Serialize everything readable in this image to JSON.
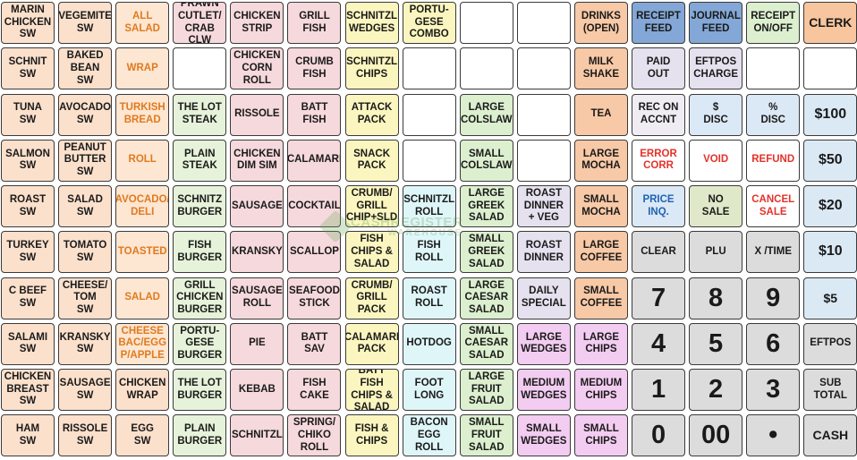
{
  "colors": {
    "sandwich": "#fbe0cc",
    "salad_side": "#fde6d2",
    "salad_side_text": "#e07a1e",
    "steak_burger": "#e6f2d9",
    "chicken": "#f6d9dc",
    "seafood": "#f6d9dc",
    "combo_pack": "#fbf6bf",
    "roll_cyan": "#dff6f9",
    "salad_green": "#dcefcf",
    "special_lavender": "#e6e1ef",
    "wedges_pink": "#f3ccf1",
    "drinks": "#f8c9a6",
    "function_blue": "#83a7d6",
    "function_grey": "#dcdcdc",
    "function_light": "#f0ecf4",
    "paid_lavender": "#e5e1ee",
    "disc_blue": "#dbe8f5",
    "no_sale_green": "#dfe9c9",
    "red_text": "#e4322b",
    "blue_text": "#1f63b3",
    "clerk": "#f7c59e",
    "cash_keys": "#dbe9f5",
    "number_keys": "#dcdcdc"
  },
  "watermark": {
    "top": "CASHREGISTER",
    "bottom": "WAREHOUSE"
  },
  "keys": [
    [
      {
        "name": "key-marin-chicken-sw",
        "label": "MARIN\nCHICKEN\nSW",
        "color": "sandwich"
      },
      {
        "name": "key-vegemite-sw",
        "label": "VEGEMITE\nSW",
        "color": "sandwich"
      },
      {
        "name": "key-all-salad",
        "label": "ALL\nSALAD",
        "color": "salad_side",
        "text": "salad_side_text"
      },
      {
        "name": "key-prawn-cutlet-crab-clw",
        "label": "PRAWN\nCUTLET/\nCRAB CLW",
        "color": "chicken"
      },
      {
        "name": "key-chicken-strip",
        "label": "CHICKEN\nSTRIP",
        "color": "chicken"
      },
      {
        "name": "key-grill-fish",
        "label": "GRILL\nFISH",
        "color": "seafood"
      },
      {
        "name": "key-schnitzl-wedges",
        "label": "SCHNITZL\nWEDGES",
        "color": "combo_pack"
      },
      {
        "name": "key-portugese-combo",
        "label": "PORTU-\nGESE\nCOMBO",
        "color": "combo_pack"
      },
      {
        "name": "key-blank-r1c9",
        "label": "",
        "color": "blank"
      },
      {
        "name": "key-blank-r1c10",
        "label": "",
        "color": "blank"
      },
      {
        "name": "key-drinks-open",
        "label": "DRINKS\n(OPEN)",
        "color": "drinks"
      },
      {
        "name": "key-receipt-feed",
        "label": "RECEIPT\nFEED",
        "color": "function_blue"
      },
      {
        "name": "key-journal-feed",
        "label": "JOURNAL\nFEED",
        "color": "function_blue"
      },
      {
        "name": "key-receipt-on-off",
        "label": "RECEIPT\nON/OFF",
        "color": "salad_green"
      },
      {
        "name": "key-clerk",
        "label": "CLERK",
        "color": "clerk",
        "size": "mid"
      }
    ],
    [
      {
        "name": "key-schnit-sw",
        "label": "SCHNIT\nSW",
        "color": "sandwich"
      },
      {
        "name": "key-baked-bean-sw",
        "label": "BAKED\nBEAN\nSW",
        "color": "sandwich"
      },
      {
        "name": "key-wrap",
        "label": "WRAP",
        "color": "salad_side",
        "text": "salad_side_text"
      },
      {
        "name": "key-blank-r2c4",
        "label": "",
        "color": "blank"
      },
      {
        "name": "key-chicken-corn-roll",
        "label": "CHICKEN\nCORN\nROLL",
        "color": "chicken"
      },
      {
        "name": "key-crumb-fish",
        "label": "CRUMB\nFISH",
        "color": "seafood"
      },
      {
        "name": "key-schnitzl-chips",
        "label": "SCHNITZL\nCHIPS",
        "color": "combo_pack"
      },
      {
        "name": "key-blank-r2c8",
        "label": "",
        "color": "blank"
      },
      {
        "name": "key-blank-r2c9",
        "label": "",
        "color": "blank"
      },
      {
        "name": "key-blank-r2c10",
        "label": "",
        "color": "blank"
      },
      {
        "name": "key-milk-shake",
        "label": "MILK\nSHAKE",
        "color": "drinks"
      },
      {
        "name": "key-paid-out",
        "label": "PAID\nOUT",
        "color": "paid_lavender"
      },
      {
        "name": "key-eftpos-charge",
        "label": "EFTPOS\nCHARGE",
        "color": "paid_lavender"
      },
      {
        "name": "key-blank-r2c14",
        "label": "",
        "color": "blank"
      },
      {
        "name": "key-blank-r2c15",
        "label": "",
        "color": "blank"
      }
    ],
    [
      {
        "name": "key-tuna-sw",
        "label": "TUNA\nSW",
        "color": "sandwich"
      },
      {
        "name": "key-avocado-sw",
        "label": "AVOCADO\nSW",
        "color": "sandwich"
      },
      {
        "name": "key-turkish-bread",
        "label": "TURKISH\nBREAD",
        "color": "salad_side",
        "text": "salad_side_text"
      },
      {
        "name": "key-the-lot-steak",
        "label": "THE LOT\nSTEAK",
        "color": "steak_burger"
      },
      {
        "name": "key-rissole",
        "label": "RISSOLE",
        "color": "chicken"
      },
      {
        "name": "key-batt-fish",
        "label": "BATT\nFISH",
        "color": "seafood"
      },
      {
        "name": "key-attack-pack",
        "label": "ATTACK\nPACK",
        "color": "combo_pack"
      },
      {
        "name": "key-blank-r3c8",
        "label": "",
        "color": "blank"
      },
      {
        "name": "key-large-colslaw",
        "label": "LARGE\nCOLSLAW",
        "color": "salad_green"
      },
      {
        "name": "key-blank-r3c10",
        "label": "",
        "color": "blank"
      },
      {
        "name": "key-tea",
        "label": "TEA",
        "color": "drinks"
      },
      {
        "name": "key-rec-on-accnt",
        "label": "REC ON\nACCNT",
        "color": "function_light"
      },
      {
        "name": "key-dollar-disc",
        "label": "$\nDISC",
        "color": "disc_blue"
      },
      {
        "name": "key-percent-disc",
        "label": "%\nDISC",
        "color": "disc_blue"
      },
      {
        "name": "key-100-dollars",
        "label": "$100",
        "color": "cash_keys",
        "size": "big"
      }
    ],
    [
      {
        "name": "key-salmon-sw",
        "label": "SALMON\nSW",
        "color": "sandwich"
      },
      {
        "name": "key-peanut-butter-sw",
        "label": "PEANUT\nBUTTER\nSW",
        "color": "sandwich"
      },
      {
        "name": "key-roll",
        "label": "ROLL",
        "color": "salad_side",
        "text": "salad_side_text"
      },
      {
        "name": "key-plain-steak",
        "label": "PLAIN\nSTEAK",
        "color": "steak_burger"
      },
      {
        "name": "key-chicken-dim-sim",
        "label": "CHICKEN\nDIM SIM",
        "color": "chicken"
      },
      {
        "name": "key-calamari",
        "label": "CALAMARI",
        "color": "seafood"
      },
      {
        "name": "key-snack-pack",
        "label": "SNACK\nPACK",
        "color": "combo_pack"
      },
      {
        "name": "key-blank-r4c8",
        "label": "",
        "color": "blank"
      },
      {
        "name": "key-small-colslaw",
        "label": "SMALL\nCOLSLAW",
        "color": "salad_green"
      },
      {
        "name": "key-blank-r4c10",
        "label": "",
        "color": "blank"
      },
      {
        "name": "key-large-mocha",
        "label": "LARGE\nMOCHA",
        "color": "drinks"
      },
      {
        "name": "key-error-corr",
        "label": "ERROR\nCORR",
        "color": "blank",
        "text": "red_text"
      },
      {
        "name": "key-void",
        "label": "VOID",
        "color": "blank",
        "text": "red_text"
      },
      {
        "name": "key-refund",
        "label": "REFUND",
        "color": "blank",
        "text": "red_text"
      },
      {
        "name": "key-50-dollars",
        "label": "$50",
        "color": "cash_keys",
        "size": "big"
      }
    ],
    [
      {
        "name": "key-roast-sw",
        "label": "ROAST\nSW",
        "color": "sandwich"
      },
      {
        "name": "key-salad-sw",
        "label": "SALAD\nSW",
        "color": "sandwich"
      },
      {
        "name": "key-avocado-deli",
        "label": "AVOCADO/\nDELI",
        "color": "salad_side",
        "text": "salad_side_text"
      },
      {
        "name": "key-schnitz-burger",
        "label": "SCHNITZ\nBURGER",
        "color": "steak_burger"
      },
      {
        "name": "key-sausage",
        "label": "SAUSAGE",
        "color": "chicken"
      },
      {
        "name": "key-cocktail",
        "label": "COCKTAIL",
        "color": "seafood"
      },
      {
        "name": "key-crumb-grill-chip-sld",
        "label": "CRUMB/\nGRILL\nCHIP+SLD",
        "color": "combo_pack"
      },
      {
        "name": "key-schnitzl-roll",
        "label": "SCHNITZL\nROLL",
        "color": "roll_cyan"
      },
      {
        "name": "key-large-greek-salad",
        "label": "LARGE\nGREEK\nSALAD",
        "color": "salad_green"
      },
      {
        "name": "key-roast-dinner-veg",
        "label": "ROAST\nDINNER\n+ VEG",
        "color": "special_lavender"
      },
      {
        "name": "key-small-mocha",
        "label": "SMALL\nMOCHA",
        "color": "drinks"
      },
      {
        "name": "key-price-inq",
        "label": "PRICE\nINQ.",
        "color": "disc_blue",
        "text": "blue_text"
      },
      {
        "name": "key-no-sale",
        "label": "NO\nSALE",
        "color": "no_sale_green"
      },
      {
        "name": "key-cancel-sale",
        "label": "CANCEL\nSALE",
        "color": "blank",
        "text": "red_text"
      },
      {
        "name": "key-20-dollars",
        "label": "$20",
        "color": "cash_keys",
        "size": "big"
      }
    ],
    [
      {
        "name": "key-turkey-sw",
        "label": "TURKEY\nSW",
        "color": "sandwich"
      },
      {
        "name": "key-tomato-sw",
        "label": "TOMATO\nSW",
        "color": "sandwich"
      },
      {
        "name": "key-toasted",
        "label": "TOASTED",
        "color": "salad_side",
        "text": "salad_side_text"
      },
      {
        "name": "key-fish-burger",
        "label": "FISH\nBURGER",
        "color": "steak_burger"
      },
      {
        "name": "key-kransky",
        "label": "KRANSKY",
        "color": "chicken"
      },
      {
        "name": "key-scallop",
        "label": "SCALLOP",
        "color": "seafood"
      },
      {
        "name": "key-fish-chips-salad",
        "label": "FISH\nCHIPS &\nSALAD",
        "color": "combo_pack"
      },
      {
        "name": "key-fish-roll",
        "label": "FISH\nROLL",
        "color": "roll_cyan"
      },
      {
        "name": "key-small-greek-salad",
        "label": "SMALL\nGREEK\nSALAD",
        "color": "salad_green"
      },
      {
        "name": "key-roast-dinner",
        "label": "ROAST\nDINNER",
        "color": "special_lavender"
      },
      {
        "name": "key-large-coffee",
        "label": "LARGE\nCOFFEE",
        "color": "drinks"
      },
      {
        "name": "key-clear",
        "label": "CLEAR",
        "color": "function_grey"
      },
      {
        "name": "key-plu",
        "label": "PLU",
        "color": "function_grey"
      },
      {
        "name": "key-x-time",
        "label": "X /TIME",
        "color": "function_grey"
      },
      {
        "name": "key-10-dollars",
        "label": "$10",
        "color": "cash_keys",
        "size": "big"
      }
    ],
    [
      {
        "name": "key-c-beef-sw",
        "label": "C BEEF\nSW",
        "color": "sandwich"
      },
      {
        "name": "key-cheese-tom-sw",
        "label": "CHEESE/\nTOM\nSW",
        "color": "sandwich"
      },
      {
        "name": "key-salad",
        "label": "SALAD",
        "color": "salad_side",
        "text": "salad_side_text"
      },
      {
        "name": "key-grill-chicken-burger",
        "label": "GRILL\nCHICKEN\nBURGER",
        "color": "steak_burger"
      },
      {
        "name": "key-sausage-roll",
        "label": "SAUSAGE\nROLL",
        "color": "chicken"
      },
      {
        "name": "key-seafood-stick",
        "label": "SEAFOOD\nSTICK",
        "color": "seafood"
      },
      {
        "name": "key-crumb-grill-pack",
        "label": "CRUMB/\nGRILL\nPACK",
        "color": "combo_pack"
      },
      {
        "name": "key-roast-roll",
        "label": "ROAST\nROLL",
        "color": "roll_cyan"
      },
      {
        "name": "key-large-caesar-salad",
        "label": "LARGE\nCAESAR\nSALAD",
        "color": "salad_green"
      },
      {
        "name": "key-daily-special",
        "label": "DAILY\nSPECIAL",
        "color": "special_lavender"
      },
      {
        "name": "key-small-coffee",
        "label": "SMALL\nCOFFEE",
        "color": "drinks"
      },
      {
        "name": "key-7",
        "label": "7",
        "color": "number_keys",
        "size": "num"
      },
      {
        "name": "key-8",
        "label": "8",
        "color": "number_keys",
        "size": "num"
      },
      {
        "name": "key-9",
        "label": "9",
        "color": "number_keys",
        "size": "num"
      },
      {
        "name": "key-5-dollars",
        "label": "$5",
        "color": "cash_keys",
        "size": "mid"
      }
    ],
    [
      {
        "name": "key-salami-sw",
        "label": "SALAMI\nSW",
        "color": "sandwich"
      },
      {
        "name": "key-kransky-sw",
        "label": "KRANSKY\nSW",
        "color": "sandwich"
      },
      {
        "name": "key-cheese-bac-egg-papple",
        "label": "CHEESE\nBAC/EGG\nP/APPLE",
        "color": "salad_side",
        "text": "salad_side_text"
      },
      {
        "name": "key-portugese-burger",
        "label": "PORTU-\nGESE\nBURGER",
        "color": "steak_burger"
      },
      {
        "name": "key-pie",
        "label": "PIE",
        "color": "chicken"
      },
      {
        "name": "key-batt-sav",
        "label": "BATT\nSAV",
        "color": "seafood"
      },
      {
        "name": "key-calamari-pack",
        "label": "CALAMARI\nPACK",
        "color": "combo_pack"
      },
      {
        "name": "key-hotdog",
        "label": "HOTDOG",
        "color": "roll_cyan"
      },
      {
        "name": "key-small-caesar-salad",
        "label": "SMALL\nCAESAR\nSALAD",
        "color": "salad_green"
      },
      {
        "name": "key-large-wedges",
        "label": "LARGE\nWEDGES",
        "color": "wedges_pink"
      },
      {
        "name": "key-large-chips",
        "label": "LARGE\nCHIPS",
        "color": "wedges_pink"
      },
      {
        "name": "key-4",
        "label": "4",
        "color": "number_keys",
        "size": "num"
      },
      {
        "name": "key-5",
        "label": "5",
        "color": "number_keys",
        "size": "num"
      },
      {
        "name": "key-6",
        "label": "6",
        "color": "number_keys",
        "size": "num"
      },
      {
        "name": "key-eftpos",
        "label": "EFTPOS",
        "color": "function_grey"
      }
    ],
    [
      {
        "name": "key-chicken-breast-sw",
        "label": "CHICKEN\nBREAST\nSW",
        "color": "sandwich"
      },
      {
        "name": "key-sausage-sw",
        "label": "SAUSAGE\nSW",
        "color": "sandwich"
      },
      {
        "name": "key-chicken-wrap",
        "label": "CHICKEN\nWRAP",
        "color": "sandwich"
      },
      {
        "name": "key-the-lot-burger",
        "label": "THE LOT\nBURGER",
        "color": "steak_burger"
      },
      {
        "name": "key-kebab",
        "label": "KEBAB",
        "color": "chicken"
      },
      {
        "name": "key-fish-cake",
        "label": "FISH\nCAKE",
        "color": "seafood"
      },
      {
        "name": "key-batt-fish-chips-salad",
        "label": "BATT FISH\nCHIPS &\nSALAD",
        "color": "combo_pack"
      },
      {
        "name": "key-foot-long",
        "label": "FOOT\nLONG",
        "color": "roll_cyan"
      },
      {
        "name": "key-large-fruit-salad",
        "label": "LARGE\nFRUIT\nSALAD",
        "color": "salad_green"
      },
      {
        "name": "key-medium-wedges",
        "label": "MEDIUM\nWEDGES",
        "color": "wedges_pink"
      },
      {
        "name": "key-medium-chips",
        "label": "MEDIUM\nCHIPS",
        "color": "wedges_pink"
      },
      {
        "name": "key-1",
        "label": "1",
        "color": "number_keys",
        "size": "num"
      },
      {
        "name": "key-2",
        "label": "2",
        "color": "number_keys",
        "size": "num"
      },
      {
        "name": "key-3",
        "label": "3",
        "color": "number_keys",
        "size": "num"
      },
      {
        "name": "key-sub-total",
        "label": "SUB\nTOTAL",
        "color": "function_grey"
      }
    ],
    [
      {
        "name": "key-ham-sw",
        "label": "HAM\nSW",
        "color": "sandwich"
      },
      {
        "name": "key-rissole-sw",
        "label": "RISSOLE\nSW",
        "color": "sandwich"
      },
      {
        "name": "key-egg-sw",
        "label": "EGG\nSW",
        "color": "sandwich"
      },
      {
        "name": "key-plain-burger",
        "label": "PLAIN\nBURGER",
        "color": "steak_burger"
      },
      {
        "name": "key-schnitzl",
        "label": "SCHNITZL",
        "color": "chicken"
      },
      {
        "name": "key-spring-chiko-roll",
        "label": "SPRING/\nCHIKO\nROLL",
        "color": "seafood"
      },
      {
        "name": "key-fish-and-chips",
        "label": "FISH &\nCHIPS",
        "color": "combo_pack"
      },
      {
        "name": "key-bacon-egg-roll",
        "label": "BACON\nEGG\nROLL",
        "color": "roll_cyan"
      },
      {
        "name": "key-small-fruit-salad",
        "label": "SMALL\nFRUIT\nSALAD",
        "color": "salad_green"
      },
      {
        "name": "key-small-wedges",
        "label": "SMALL\nWEDGES",
        "color": "wedges_pink"
      },
      {
        "name": "key-small-chips",
        "label": "SMALL\nCHIPS",
        "color": "wedges_pink"
      },
      {
        "name": "key-0",
        "label": "0",
        "color": "number_keys",
        "size": "num"
      },
      {
        "name": "key-00",
        "label": "00",
        "color": "number_keys",
        "size": "num"
      },
      {
        "name": "key-decimal-point",
        "label": "•",
        "color": "number_keys",
        "size": "num"
      },
      {
        "name": "key-cash",
        "label": "CASH",
        "color": "function_grey",
        "size": "mid"
      }
    ]
  ]
}
